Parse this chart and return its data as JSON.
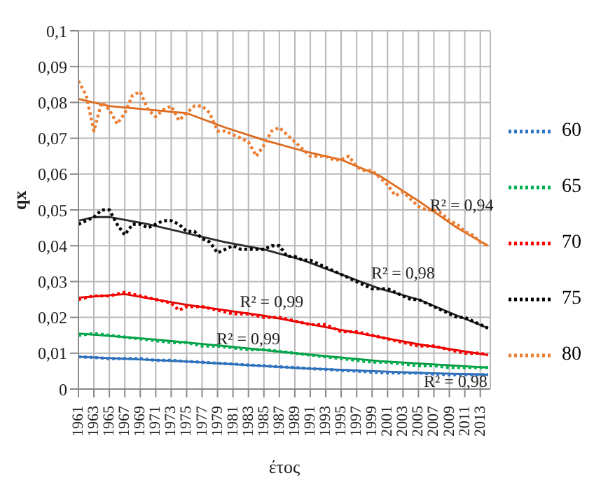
{
  "chart_data": {
    "type": "line",
    "xlabel": "έτος",
    "ylabel": "qx",
    "xlim": [
      1961,
      2014.3
    ],
    "xticks": [
      1961,
      1963,
      1965,
      1967,
      1969,
      1971,
      1973,
      1975,
      1977,
      1979,
      1981,
      1983,
      1985,
      1987,
      1989,
      1991,
      1993,
      1995,
      1997,
      1999,
      2001,
      2003,
      2005,
      2007,
      2009,
      2011,
      2013
    ],
    "ylim": [
      0,
      0.1
    ],
    "yticks": [
      0,
      {
        "value": 0.01,
        "label": "0,01"
      },
      {
        "value": 0.02,
        "label": "0,02"
      },
      {
        "value": 0.03,
        "label": "0,03"
      },
      {
        "value": 0.04,
        "label": "0,04"
      },
      {
        "value": 0.05,
        "label": "0,05"
      },
      {
        "value": 0.06,
        "label": "0,06"
      },
      {
        "value": 0.07,
        "label": "0,07"
      },
      {
        "value": 0.08,
        "label": "0,08"
      },
      {
        "value": 0.09,
        "label": "0,09"
      },
      {
        "value": 0.1,
        "label": "0,1"
      }
    ],
    "grid": true,
    "legend": "right",
    "line_style": "dotted",
    "marker": "none",
    "series": [
      {
        "type": "line",
        "line_style": "solid",
        "color": "#2a66ad",
        "x": [
          1961,
          1975,
          1990,
          2005,
          2014
        ],
        "values": [
          0.009,
          0.0077,
          0.0058,
          0.0045,
          0.004
        ]
      },
      {
        "type": "line",
        "line_style": "solid",
        "color": "#00963f",
        "x": [
          1961,
          1970,
          1980,
          1990,
          2000,
          2014
        ],
        "values": [
          0.0155,
          0.014,
          0.012,
          0.0098,
          0.0078,
          0.006
        ]
      },
      {
        "type": "line",
        "line_style": "solid",
        "color": "#e00000",
        "x": [
          1961,
          1967,
          1975,
          1985,
          1995,
          2005,
          2014
        ],
        "values": [
          0.0255,
          0.0265,
          0.0235,
          0.0205,
          0.0165,
          0.0125,
          0.0095
        ]
      },
      {
        "type": "line",
        "line_style": "solid",
        "color": "#2b2b2b",
        "x": [
          1961,
          1963,
          1965,
          1970,
          1975,
          1980,
          1985,
          1990,
          1995,
          2000,
          2005,
          2010,
          2014
        ],
        "values": [
          0.047,
          0.048,
          0.048,
          0.046,
          0.0435,
          0.041,
          0.039,
          0.036,
          0.032,
          0.028,
          0.025,
          0.0205,
          0.017
        ]
      },
      {
        "type": "line",
        "line_style": "solid",
        "color": "#dc6a1c",
        "x": [
          1961,
          1965,
          1970,
          1975,
          1980,
          1985,
          1990,
          1995,
          2000,
          2005,
          2010,
          2014
        ],
        "values": [
          0.081,
          0.079,
          0.078,
          0.077,
          0.073,
          0.0695,
          0.0665,
          0.064,
          0.0595,
          0.0525,
          0.045,
          0.04
        ]
      },
      {
        "name": "60",
        "color": "#2e75c6",
        "x": [
          1961,
          1963,
          1965,
          1967,
          1969,
          1971,
          1973,
          1975,
          1977,
          1979,
          1981,
          1983,
          1985,
          1987,
          1989,
          1991,
          1993,
          1995,
          1997,
          1999,
          2001,
          2003,
          2005,
          2007,
          2009,
          2011,
          2013,
          2014
        ],
        "values": [
          0.009,
          0.0088,
          0.0085,
          0.0085,
          0.0085,
          0.008,
          0.008,
          0.0077,
          0.0075,
          0.0072,
          0.007,
          0.0067,
          0.0065,
          0.0062,
          0.006,
          0.0057,
          0.0055,
          0.0052,
          0.005,
          0.0047,
          0.0045,
          0.0045,
          0.0045,
          0.0042,
          0.004,
          0.004,
          0.004,
          0.004
        ]
      },
      {
        "name": "65",
        "color": "#00b050",
        "x": [
          1961,
          1963,
          1965,
          1967,
          1969,
          1971,
          1973,
          1975,
          1977,
          1979,
          1981,
          1983,
          1985,
          1987,
          1989,
          1991,
          1993,
          1995,
          1997,
          1999,
          2001,
          2003,
          2005,
          2007,
          2009,
          2011,
          2013,
          2014
        ],
        "values": [
          0.015,
          0.0155,
          0.015,
          0.0145,
          0.014,
          0.0135,
          0.013,
          0.013,
          0.012,
          0.012,
          0.0115,
          0.011,
          0.011,
          0.0105,
          0.01,
          0.0095,
          0.009,
          0.0085,
          0.008,
          0.0075,
          0.0075,
          0.007,
          0.0065,
          0.0065,
          0.006,
          0.006,
          0.006,
          0.006
        ]
      },
      {
        "name": "70",
        "color": "#ff0000",
        "x": [
          1961,
          1963,
          1965,
          1967,
          1969,
          1971,
          1973,
          1974,
          1975,
          1977,
          1979,
          1981,
          1983,
          1985,
          1987,
          1989,
          1991,
          1993,
          1995,
          1997,
          1999,
          2001,
          2003,
          2005,
          2007,
          2009,
          2011,
          2013,
          2014
        ],
        "values": [
          0.025,
          0.026,
          0.026,
          0.027,
          0.026,
          0.025,
          0.024,
          0.022,
          0.023,
          0.023,
          0.022,
          0.021,
          0.021,
          0.02,
          0.02,
          0.019,
          0.018,
          0.018,
          0.016,
          0.016,
          0.015,
          0.014,
          0.013,
          0.012,
          0.012,
          0.011,
          0.01,
          0.01,
          0.0095
        ]
      },
      {
        "name": "75",
        "color": "#000000",
        "x": [
          1961,
          1962,
          1963,
          1964,
          1965,
          1966,
          1967,
          1968,
          1969,
          1970,
          1971,
          1972,
          1973,
          1974,
          1975,
          1976,
          1977,
          1978,
          1979,
          1980,
          1981,
          1982,
          1983,
          1984,
          1985,
          1986,
          1987,
          1988,
          1989,
          1990,
          1991,
          1992,
          1993,
          1994,
          1995,
          1996,
          1997,
          1998,
          1999,
          2000,
          2001,
          2002,
          2003,
          2004,
          2005,
          2006,
          2007,
          2008,
          2009,
          2010,
          2011,
          2012,
          2013,
          2014
        ],
        "values": [
          0.046,
          0.047,
          0.048,
          0.05,
          0.05,
          0.046,
          0.043,
          0.046,
          0.046,
          0.045,
          0.046,
          0.047,
          0.047,
          0.046,
          0.044,
          0.044,
          0.042,
          0.041,
          0.038,
          0.039,
          0.04,
          0.039,
          0.039,
          0.039,
          0.039,
          0.04,
          0.04,
          0.037,
          0.037,
          0.036,
          0.036,
          0.035,
          0.034,
          0.033,
          0.032,
          0.031,
          0.03,
          0.029,
          0.028,
          0.028,
          0.028,
          0.027,
          0.026,
          0.025,
          0.025,
          0.024,
          0.023,
          0.022,
          0.021,
          0.02,
          0.02,
          0.019,
          0.018,
          0.017
        ]
      },
      {
        "name": "80",
        "color": "#ed7d31",
        "x": [
          1961,
          1962,
          1963,
          1964,
          1965,
          1966,
          1967,
          1968,
          1969,
          1970,
          1971,
          1972,
          1973,
          1974,
          1975,
          1976,
          1977,
          1978,
          1979,
          1980,
          1981,
          1982,
          1983,
          1984,
          1985,
          1986,
          1987,
          1988,
          1989,
          1990,
          1991,
          1992,
          1993,
          1994,
          1995,
          1996,
          1997,
          1998,
          1999,
          2000,
          2001,
          2002,
          2003,
          2004,
          2005,
          2006,
          2007,
          2008,
          2009,
          2010,
          2011,
          2012,
          2013,
          2014
        ],
        "values": [
          0.086,
          0.082,
          0.072,
          0.08,
          0.078,
          0.074,
          0.077,
          0.082,
          0.083,
          0.078,
          0.076,
          0.078,
          0.079,
          0.075,
          0.077,
          0.079,
          0.079,
          0.077,
          0.072,
          0.072,
          0.071,
          0.07,
          0.069,
          0.065,
          0.068,
          0.072,
          0.073,
          0.071,
          0.069,
          0.067,
          0.065,
          0.065,
          0.065,
          0.064,
          0.064,
          0.065,
          0.062,
          0.061,
          0.061,
          0.059,
          0.057,
          0.054,
          0.055,
          0.053,
          0.051,
          0.05,
          0.05,
          0.049,
          0.047,
          0.046,
          0.044,
          0.043,
          0.041,
          0.04
        ]
      }
    ],
    "annotations": [
      "R² = 0,94",
      "R² = 0,98",
      "R² = 0,99",
      "R² = 0,99",
      "R² = 0,98"
    ]
  }
}
